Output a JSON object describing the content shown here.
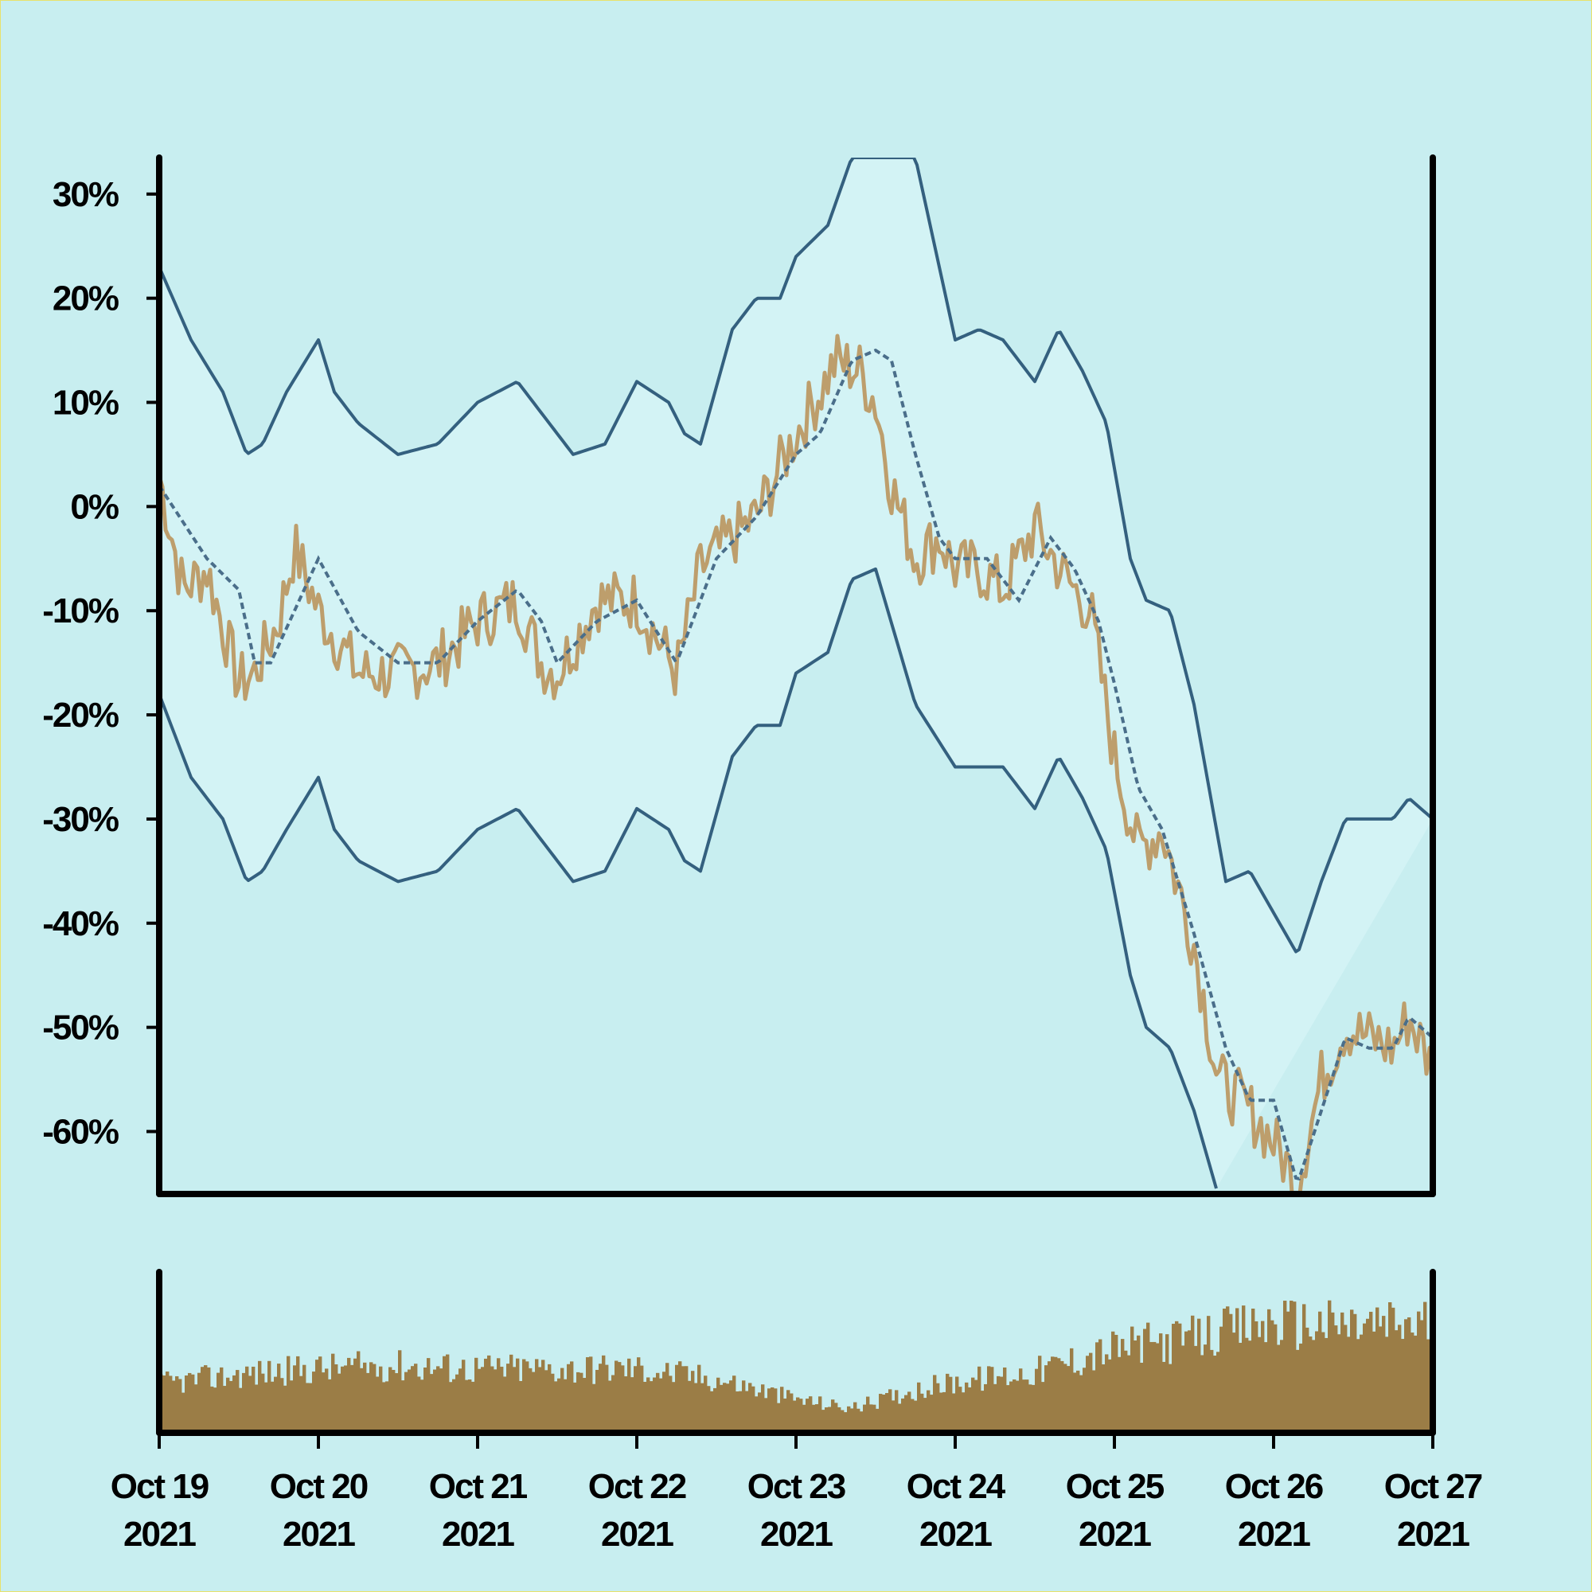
{
  "colors": {
    "background": "#c8eef0",
    "band_fill": "#d3f3f5",
    "band_line": "#34607f",
    "ma_line": "#4a6e8a",
    "price_line": "#bd9e6c",
    "volume_bar": "#9b7d46",
    "axis": "#000000"
  },
  "chart_data": {
    "type": "line",
    "title": "",
    "xlabel": "",
    "ylabel": "",
    "x_axis": {
      "ticks": [
        {
          "line1": "Oct 19",
          "line2": "2021"
        },
        {
          "line1": "Oct 20",
          "line2": "2021"
        },
        {
          "line1": "Oct 21",
          "line2": "2021"
        },
        {
          "line1": "Oct 22",
          "line2": "2021"
        },
        {
          "line1": "Oct 23",
          "line2": "2021"
        },
        {
          "line1": "Oct 24",
          "line2": "2021"
        },
        {
          "line1": "Oct 25",
          "line2": "2021"
        },
        {
          "line1": "Oct 26",
          "line2": "2021"
        },
        {
          "line1": "Oct 27",
          "line2": "2021"
        }
      ],
      "range_days": [
        0,
        8
      ]
    },
    "y_axis": {
      "ticks": [
        "30%",
        "20%",
        "10%",
        "0%",
        "-10%",
        "-20%",
        "-30%",
        "-40%",
        "-50%",
        "-60%"
      ],
      "tick_values": [
        30,
        20,
        10,
        0,
        -10,
        -20,
        -30,
        -40,
        -50,
        -60
      ],
      "range": [
        -66,
        33.5
      ]
    },
    "grid": false,
    "legend": "none",
    "price_points": [
      [
        0,
        3
      ],
      [
        0.15,
        -8
      ],
      [
        0.3,
        -6
      ],
      [
        0.5,
        -17
      ],
      [
        0.6,
        -16
      ],
      [
        0.75,
        -11
      ],
      [
        0.85,
        -4
      ],
      [
        1.0,
        -10
      ],
      [
        1.25,
        -16
      ],
      [
        1.5,
        -16
      ],
      [
        1.75,
        -15
      ],
      [
        2.0,
        -11
      ],
      [
        2.25,
        -9
      ],
      [
        2.4,
        -15
      ],
      [
        2.5,
        -16
      ],
      [
        2.75,
        -9
      ],
      [
        3.0,
        -9
      ],
      [
        3.25,
        -16
      ],
      [
        3.4,
        -6
      ],
      [
        3.6,
        -3
      ],
      [
        3.75,
        -1
      ],
      [
        4.0,
        7
      ],
      [
        4.15,
        11
      ],
      [
        4.25,
        14
      ],
      [
        4.4,
        13
      ],
      [
        4.5,
        10
      ],
      [
        4.6,
        2
      ],
      [
        4.75,
        -5
      ],
      [
        4.9,
        -3
      ],
      [
        5.0,
        -6
      ],
      [
        5.15,
        -6
      ],
      [
        5.3,
        -8
      ],
      [
        5.5,
        -2
      ],
      [
        5.7,
        -7
      ],
      [
        5.85,
        -10
      ],
      [
        6.0,
        -24
      ],
      [
        6.15,
        -33
      ],
      [
        6.3,
        -31
      ],
      [
        6.5,
        -42
      ],
      [
        6.65,
        -55
      ],
      [
        6.85,
        -58
      ],
      [
        7.0,
        -61
      ],
      [
        7.15,
        -65
      ],
      [
        7.3,
        -55
      ],
      [
        7.45,
        -50
      ],
      [
        7.6,
        -51
      ],
      [
        7.75,
        -52
      ],
      [
        7.85,
        -49
      ],
      [
        8.0,
        -54
      ]
    ],
    "ma_points": [
      [
        0,
        2
      ],
      [
        0.3,
        -5
      ],
      [
        0.5,
        -8
      ],
      [
        0.6,
        -15
      ],
      [
        0.7,
        -15
      ],
      [
        0.85,
        -10
      ],
      [
        1.0,
        -5
      ],
      [
        1.25,
        -12
      ],
      [
        1.5,
        -15
      ],
      [
        1.75,
        -15
      ],
      [
        2.0,
        -11
      ],
      [
        2.25,
        -8
      ],
      [
        2.4,
        -11
      ],
      [
        2.5,
        -15
      ],
      [
        2.75,
        -11
      ],
      [
        3.0,
        -9
      ],
      [
        3.25,
        -15
      ],
      [
        3.5,
        -5
      ],
      [
        3.75,
        -1
      ],
      [
        4.0,
        5
      ],
      [
        4.15,
        7
      ],
      [
        4.35,
        14
      ],
      [
        4.5,
        15
      ],
      [
        4.6,
        14
      ],
      [
        4.75,
        5
      ],
      [
        4.9,
        -3
      ],
      [
        5.0,
        -5
      ],
      [
        5.2,
        -5
      ],
      [
        5.4,
        -9
      ],
      [
        5.6,
        -3
      ],
      [
        5.75,
        -6
      ],
      [
        5.9,
        -11
      ],
      [
        6.0,
        -17
      ],
      [
        6.15,
        -27
      ],
      [
        6.3,
        -31
      ],
      [
        6.5,
        -41
      ],
      [
        6.7,
        -52
      ],
      [
        6.85,
        -57
      ],
      [
        7.0,
        -57
      ],
      [
        7.15,
        -65
      ],
      [
        7.3,
        -58
      ],
      [
        7.45,
        -51
      ],
      [
        7.6,
        -52
      ],
      [
        7.75,
        -52
      ],
      [
        7.85,
        -49
      ],
      [
        8.0,
        -51
      ]
    ],
    "upper_band_points": [
      [
        0,
        23
      ],
      [
        0.2,
        16
      ],
      [
        0.4,
        11
      ],
      [
        0.55,
        5
      ],
      [
        0.65,
        6
      ],
      [
        0.8,
        11
      ],
      [
        1.0,
        16
      ],
      [
        1.1,
        11
      ],
      [
        1.25,
        8
      ],
      [
        1.5,
        5
      ],
      [
        1.75,
        6
      ],
      [
        2.0,
        10
      ],
      [
        2.25,
        12
      ],
      [
        2.45,
        8
      ],
      [
        2.6,
        5
      ],
      [
        2.8,
        6
      ],
      [
        3.0,
        12
      ],
      [
        3.2,
        10
      ],
      [
        3.3,
        7
      ],
      [
        3.4,
        6
      ],
      [
        3.6,
        17
      ],
      [
        3.75,
        20
      ],
      [
        3.9,
        20
      ],
      [
        4.0,
        24
      ],
      [
        4.2,
        27
      ],
      [
        4.35,
        33.5
      ],
      [
        4.5,
        33.5
      ],
      [
        4.75,
        33.5
      ],
      [
        5.0,
        16
      ],
      [
        5.15,
        17
      ],
      [
        5.3,
        16
      ],
      [
        5.5,
        12
      ],
      [
        5.65,
        17
      ],
      [
        5.8,
        13
      ],
      [
        5.95,
        8
      ],
      [
        6.1,
        -5
      ],
      [
        6.2,
        -9
      ],
      [
        6.35,
        -10
      ],
      [
        6.5,
        -19
      ],
      [
        6.7,
        -36
      ],
      [
        6.85,
        -35
      ],
      [
        7.0,
        -39
      ],
      [
        7.15,
        -43
      ],
      [
        7.3,
        -36
      ],
      [
        7.45,
        -30
      ],
      [
        7.6,
        -30
      ],
      [
        7.75,
        -30
      ],
      [
        7.85,
        -28
      ],
      [
        8.0,
        -30
      ]
    ],
    "lower_band_points": [
      [
        0,
        -18
      ],
      [
        0.2,
        -26
      ],
      [
        0.4,
        -30
      ],
      [
        0.55,
        -36
      ],
      [
        0.65,
        -35
      ],
      [
        0.8,
        -31
      ],
      [
        1.0,
        -26
      ],
      [
        1.1,
        -31
      ],
      [
        1.25,
        -34
      ],
      [
        1.5,
        -36
      ],
      [
        1.75,
        -35
      ],
      [
        2.0,
        -31
      ],
      [
        2.25,
        -29
      ],
      [
        2.45,
        -33
      ],
      [
        2.6,
        -36
      ],
      [
        2.8,
        -35
      ],
      [
        3.0,
        -29
      ],
      [
        3.2,
        -31
      ],
      [
        3.3,
        -34
      ],
      [
        3.4,
        -35
      ],
      [
        3.6,
        -24
      ],
      [
        3.75,
        -21
      ],
      [
        3.9,
        -21
      ],
      [
        4.0,
        -16
      ],
      [
        4.2,
        -14
      ],
      [
        4.35,
        -7
      ],
      [
        4.5,
        -6
      ],
      [
        4.75,
        -19
      ],
      [
        5.0,
        -25
      ],
      [
        5.15,
        -25
      ],
      [
        5.3,
        -25
      ],
      [
        5.5,
        -29
      ],
      [
        5.65,
        -24
      ],
      [
        5.8,
        -28
      ],
      [
        5.95,
        -33
      ],
      [
        6.1,
        -45
      ],
      [
        6.2,
        -50
      ],
      [
        6.35,
        -52
      ],
      [
        6.5,
        -58
      ],
      [
        6.65,
        -66
      ]
    ],
    "volume": {
      "x_range_days": [
        0,
        8
      ],
      "bars": 400,
      "relative_level_points": [
        [
          0,
          0.32
        ],
        [
          0.5,
          0.38
        ],
        [
          1.0,
          0.42
        ],
        [
          1.5,
          0.44
        ],
        [
          2.0,
          0.42
        ],
        [
          2.5,
          0.42
        ],
        [
          3.0,
          0.42
        ],
        [
          3.5,
          0.35
        ],
        [
          4.0,
          0.22
        ],
        [
          4.35,
          0.16
        ],
        [
          4.75,
          0.28
        ],
        [
          5.0,
          0.33
        ],
        [
          5.5,
          0.4
        ],
        [
          6.0,
          0.55
        ],
        [
          6.5,
          0.62
        ],
        [
          7.0,
          0.72
        ],
        [
          7.5,
          0.7
        ],
        [
          8.0,
          0.72
        ]
      ]
    }
  }
}
